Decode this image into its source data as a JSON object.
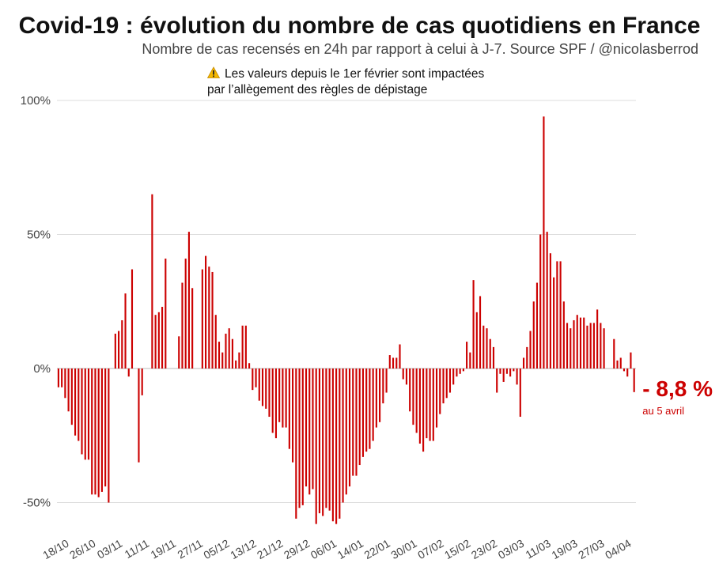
{
  "header": {
    "title": "Covid-19 : évolution du nombre de cas quotidiens en France",
    "subtitle": "Nombre de cas recensés en 24h par rapport à celui à J-7. Source SPF / @nicolasberrod",
    "note_line1": "Les valeurs depuis le 1er février sont impactées",
    "note_line2": "par l’allègement des règles de dépistage",
    "note_icon": "warning-icon"
  },
  "annotation": {
    "value": "- 8,8 %",
    "date": "au 5 avril",
    "color": "#cc0000"
  },
  "chart_data": {
    "type": "bar",
    "title": "Covid-19 : évolution du nombre de cas quotidiens en France",
    "xlabel": "",
    "ylabel": "",
    "ylim": [
      -60,
      100
    ],
    "yticks": [
      -50,
      0,
      50,
      100
    ],
    "ytick_labels": [
      "-50%",
      "0%",
      "50%",
      "100%"
    ],
    "x_tick_labels": [
      "18/10",
      "26/10",
      "03/11",
      "11/11",
      "19/11",
      "27/11",
      "05/12",
      "13/12",
      "21/12",
      "29/12",
      "06/01",
      "14/01",
      "22/01",
      "30/01",
      "07/02",
      "15/02",
      "23/02",
      "03/03",
      "11/03",
      "19/03",
      "27/03",
      "04/04"
    ],
    "x_tick_days": [
      0,
      8,
      16,
      24,
      32,
      40,
      48,
      56,
      64,
      72,
      80,
      88,
      96,
      104,
      112,
      120,
      128,
      136,
      144,
      152,
      160,
      168
    ],
    "start_date": "18/10",
    "end_date": "05/04",
    "bar_color": "#cc0000",
    "grid": true,
    "unit": "%",
    "values": [
      -7,
      -7,
      -11,
      -16,
      -21,
      -25,
      -27,
      -32,
      -34,
      -34,
      -47,
      -47,
      -48,
      -46,
      -44,
      -50,
      0,
      13,
      14,
      18,
      28,
      -3,
      37,
      0,
      -35,
      -10,
      0,
      0,
      65,
      20,
      21,
      23,
      41,
      0,
      0,
      0,
      12,
      32,
      41,
      51,
      30,
      0,
      0,
      37,
      42,
      38,
      36,
      20,
      10,
      6,
      13,
      15,
      11,
      3,
      6,
      16,
      16,
      2,
      -8,
      -7,
      -12,
      -14,
      -15,
      -18,
      -24,
      -26,
      -20,
      -22,
      -22,
      -30,
      -35,
      -56,
      -52,
      -51,
      -44,
      -47,
      -45,
      -58,
      -54,
      -55,
      -52,
      -53,
      -57,
      -58,
      -56,
      -50,
      -47,
      -44,
      -40,
      -40,
      -36,
      -33,
      -31,
      -30,
      -27,
      -22,
      -20,
      -13,
      -9,
      5,
      4,
      4,
      9,
      -4,
      -6,
      -16,
      -21,
      -24,
      -28,
      -31,
      -26,
      -27,
      -27,
      -22,
      -17,
      -13,
      -11,
      -9,
      -6,
      -3,
      -2,
      -1,
      10,
      6,
      33,
      21,
      27,
      16,
      15,
      11,
      8,
      -9,
      -2,
      -5,
      -2,
      -3,
      -1,
      -6,
      -18,
      4,
      8,
      14,
      25,
      32,
      50,
      94,
      51,
      43,
      34,
      40,
      40,
      25,
      17,
      15,
      18,
      20,
      19,
      19,
      16,
      17,
      17,
      22,
      17,
      15,
      0,
      0,
      11,
      3,
      4,
      -1,
      -3,
      6,
      -8.8
    ]
  }
}
